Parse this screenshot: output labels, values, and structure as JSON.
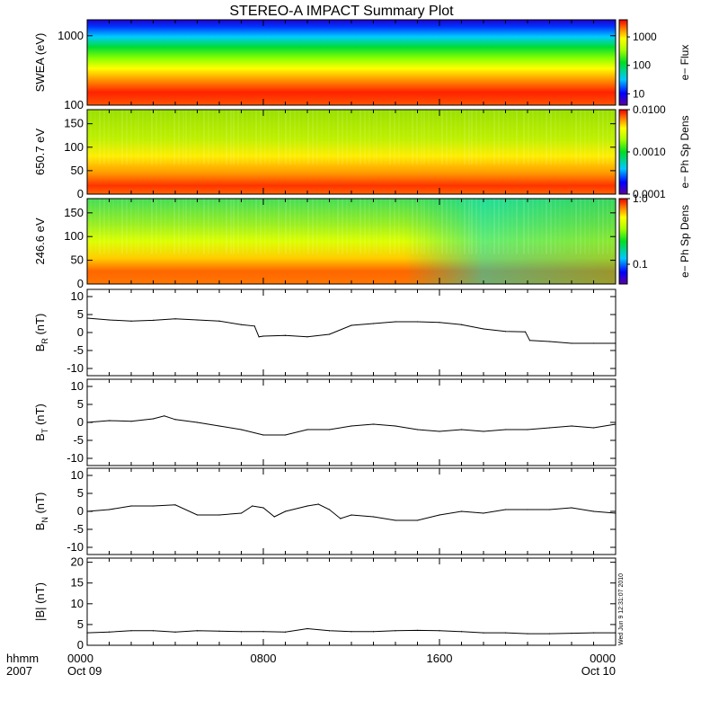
{
  "chart_data": {
    "type": "multi-panel",
    "title": "STEREO-A IMPACT Summary Plot",
    "x": {
      "label_top": "hhmm",
      "label_bottom": "2007",
      "ticks": [
        {
          "hours": 0,
          "time": "0000",
          "date": "Oct 09"
        },
        {
          "hours": 8,
          "time": "0800",
          "date": ""
        },
        {
          "hours": 16,
          "time": "1600",
          "date": ""
        },
        {
          "hours": 24,
          "time": "0000",
          "date": "Oct 10"
        }
      ],
      "range_hours": [
        0,
        24
      ]
    },
    "timestamp": "Wed Jun 9 12:31:07 2010",
    "panels": [
      {
        "id": "swea",
        "type": "heatmap",
        "ylabel": "SWEA (eV)",
        "yscale": "log",
        "yrange": [
          100,
          1700
        ],
        "yticks": [
          "100",
          "1000"
        ],
        "colorbar_label": "e− Flux",
        "colorbar_scale": "log",
        "colorbar_range": [
          4,
          4000
        ],
        "colorbar_ticks": [
          "10",
          "100",
          "1000"
        ]
      },
      {
        "id": "pad650",
        "type": "heatmap",
        "ylabel": "650.7 eV",
        "yrange": [
          0,
          180
        ],
        "yticks": [
          "0",
          "50",
          "100",
          "150"
        ],
        "colorbar_label": "e− Ph Sp Dens",
        "colorbar_scale": "log",
        "colorbar_range": [
          0.0001,
          0.01
        ],
        "colorbar_ticks": [
          "0.0001",
          "0.0010",
          "0.0100"
        ]
      },
      {
        "id": "pad246",
        "type": "heatmap",
        "ylabel": "246.6 eV",
        "yrange": [
          0,
          180
        ],
        "yticks": [
          "0",
          "50",
          "100",
          "150"
        ],
        "colorbar_label": "e− Ph Sp Dens",
        "colorbar_scale": "log",
        "colorbar_range": [
          0.05,
          1.0
        ],
        "colorbar_ticks": [
          "0.1",
          "1.0"
        ]
      },
      {
        "id": "br",
        "type": "line",
        "ylabel": "B",
        "ysub": "R",
        "yunit": " (nT)",
        "yrange": [
          -12,
          12
        ],
        "yticks": [
          "-10",
          "-5",
          "0",
          "5",
          "10"
        ],
        "x": [
          0,
          1,
          2,
          3,
          4,
          5,
          6,
          7,
          7.6,
          7.8,
          8,
          9,
          10,
          11,
          12,
          13,
          14,
          15,
          16,
          17,
          18,
          19,
          19.9,
          20.1,
          21,
          22,
          23,
          24
        ],
        "y": [
          4,
          3.5,
          3.2,
          3.4,
          3.8,
          3.5,
          3.2,
          2.2,
          1.8,
          -1.2,
          -1,
          -0.8,
          -1.2,
          -0.5,
          2,
          2.5,
          3,
          3,
          2.8,
          2.2,
          1,
          0.3,
          0.2,
          -2.2,
          -2.5,
          -3,
          -3,
          -3
        ]
      },
      {
        "id": "bt",
        "type": "line",
        "ylabel": "B",
        "ysub": "T",
        "yunit": " (nT)",
        "yrange": [
          -12,
          12
        ],
        "yticks": [
          "-10",
          "-5",
          "0",
          "5",
          "10"
        ],
        "x": [
          0,
          1,
          2,
          3,
          3.5,
          4,
          5,
          6,
          7,
          8,
          9,
          10,
          11,
          12,
          13,
          14,
          15,
          16,
          17,
          18,
          19,
          20,
          21,
          22,
          23,
          24
        ],
        "y": [
          0,
          0.5,
          0.3,
          1,
          1.8,
          0.8,
          0,
          -1,
          -2,
          -3.5,
          -3.5,
          -2,
          -2,
          -1,
          -0.5,
          -1,
          -2,
          -2.5,
          -2,
          -2.5,
          -2,
          -2,
          -1.5,
          -1,
          -1.5,
          -0.5
        ]
      },
      {
        "id": "bn",
        "type": "line",
        "ylabel": "B",
        "ysub": "N",
        "yunit": " (nT)",
        "yrange": [
          -12,
          12
        ],
        "yticks": [
          "-10",
          "-5",
          "0",
          "5",
          "10"
        ],
        "x": [
          0,
          1,
          2,
          3,
          4,
          5,
          6,
          7,
          7.5,
          8,
          8.5,
          9,
          10,
          10.5,
          11,
          11.5,
          12,
          13,
          14,
          15,
          16,
          17,
          18,
          19,
          20,
          21,
          22,
          23,
          24
        ],
        "y": [
          0,
          0.5,
          1.5,
          1.5,
          1.8,
          -1,
          -1,
          -0.5,
          1.5,
          1,
          -1.5,
          0,
          1.5,
          2,
          0.5,
          -2,
          -1,
          -1.5,
          -2.5,
          -2.5,
          -1,
          0,
          -0.5,
          0.5,
          0.5,
          0.5,
          1,
          0,
          -0.5
        ]
      },
      {
        "id": "bmag",
        "type": "line",
        "ylabel": "|B| (nT)",
        "yrange": [
          0,
          21
        ],
        "yticks": [
          "0",
          "5",
          "10",
          "15",
          "20"
        ],
        "x": [
          0,
          1,
          2,
          3,
          4,
          5,
          6,
          7,
          8,
          9,
          10,
          11,
          12,
          13,
          14,
          15,
          16,
          17,
          18,
          19,
          20,
          21,
          22,
          23,
          24
        ],
        "y": [
          3,
          3.2,
          3.5,
          3.5,
          3.2,
          3.5,
          3.4,
          3.3,
          3.3,
          3.2,
          4,
          3.5,
          3.3,
          3.3,
          3.5,
          3.6,
          3.5,
          3.3,
          3,
          3,
          2.8,
          2.8,
          2.9,
          3,
          3
        ]
      }
    ]
  }
}
